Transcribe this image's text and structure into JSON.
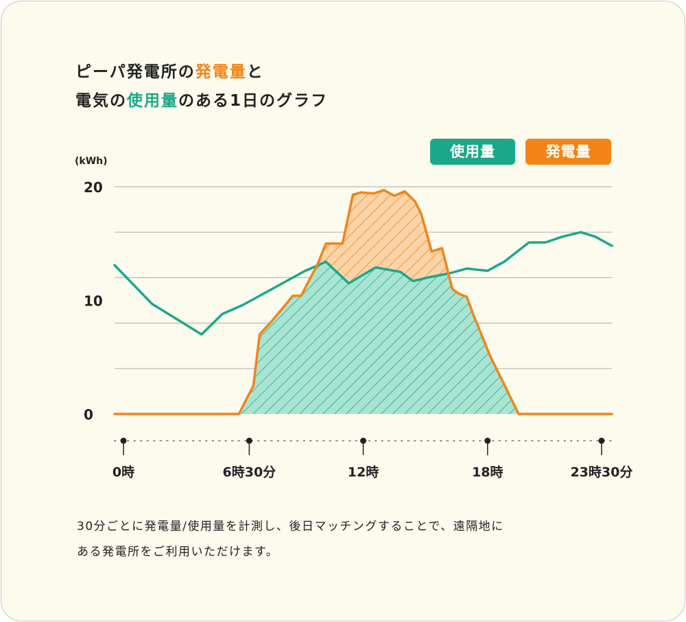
{
  "title": {
    "line1_prefix": "ピーパ発電所の",
    "line1_highlight": "発電量",
    "line1_suffix": "と",
    "line2_prefix": "電気の",
    "line2_highlight": "使用量",
    "line2_suffix": "のある1日のグラフ"
  },
  "legend": {
    "usage_label": "使用量",
    "generation_label": "発電量",
    "usage_color": "#1ba888",
    "generation_color": "#f28418"
  },
  "caption": {
    "line1": "30分ごとに発電量/使用量を計測し、後日マッチングすることで、遠隔地に",
    "line2": "ある発電所をご利用いただけます。"
  },
  "chart_data": {
    "type": "area",
    "ylabel": "(kWh)",
    "ylim": [
      0,
      20
    ],
    "xlim": [
      0,
      24
    ],
    "y_ticks": [
      0,
      10,
      20
    ],
    "y_tick_labels": [
      "0",
      "10",
      "20"
    ],
    "gridlines": [
      0,
      4,
      8,
      12,
      16,
      20
    ],
    "x_ticks": [
      0,
      6.5,
      12,
      18,
      23.5
    ],
    "x_tick_labels": [
      "0時",
      "6時30分",
      "12時",
      "18時",
      "23時30分"
    ],
    "legend_position": "top-right",
    "series": [
      {
        "name": "使用量",
        "color": "#1ba888",
        "x": [
          0,
          1.8,
          4.2,
          5.2,
          6.2,
          7.2,
          8.2,
          9.2,
          10.2,
          11.3,
          12.6,
          13.8,
          14.4,
          15.1,
          16.2,
          17.0,
          18.0,
          18.8,
          20.0,
          20.8,
          21.6,
          22.5,
          23.2,
          24.0
        ],
        "y": [
          13.1,
          9.7,
          7.0,
          8.8,
          9.6,
          10.6,
          11.6,
          12.6,
          13.4,
          11.5,
          12.9,
          12.5,
          11.7,
          12.0,
          12.4,
          12.8,
          12.6,
          13.4,
          15.1,
          15.1,
          15.6,
          16.0,
          15.6,
          14.8
        ],
        "note": ""
      },
      {
        "name": "発電量",
        "color": "#f28418",
        "x": [
          0,
          6.0,
          6.7,
          7.0,
          7.6,
          8.2,
          8.6,
          9.0,
          9.4,
          9.8,
          10.2,
          11.0,
          11.5,
          11.9,
          12.5,
          13.0,
          13.5,
          14.0,
          14.5,
          14.8,
          15.3,
          15.8,
          16.3,
          16.6,
          17.0,
          17.3,
          17.7,
          18.1,
          19.5,
          24.0
        ],
        "y": [
          0,
          0,
          2.5,
          7.0,
          8.2,
          9.5,
          10.4,
          10.4,
          11.8,
          13.2,
          15.0,
          15.0,
          19.3,
          19.5,
          19.4,
          19.7,
          19.2,
          19.6,
          18.7,
          17.6,
          14.3,
          14.6,
          11.0,
          10.6,
          10.3,
          8.8,
          7.0,
          5.2,
          0,
          0
        ]
      }
    ]
  }
}
